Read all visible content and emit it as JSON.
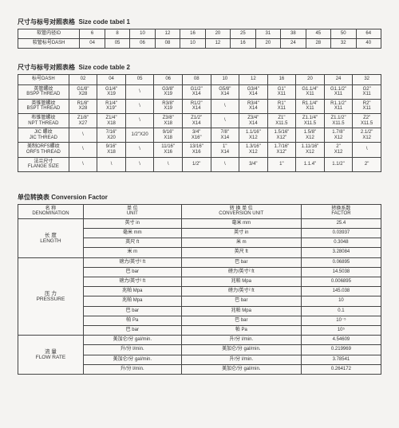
{
  "table1": {
    "title_cn": "尺寸与标号对照表格",
    "title_en": "Size code tabel  1",
    "rows": [
      {
        "h_cn": "软管内径ID",
        "h_en": "",
        "cells": [
          "6",
          "8",
          "10",
          "12",
          "16",
          "20",
          "25",
          "31",
          "38",
          "45",
          "50",
          "64"
        ]
      },
      {
        "h_cn": "软管标号DASH",
        "h_en": "",
        "cells": [
          "04",
          "05",
          "06",
          "08",
          "10",
          "12",
          "16",
          "20",
          "24",
          "28",
          "32",
          "40"
        ]
      }
    ]
  },
  "table2": {
    "title_cn": "尺寸与标号对照表格",
    "title_en": "Size code table  2",
    "header": {
      "h_cn": "标号DASH",
      "h_en": "",
      "cells": [
        "02",
        "04",
        "05",
        "06",
        "08",
        "10",
        "12",
        "16",
        "20",
        "24",
        "32"
      ]
    },
    "rows": [
      {
        "h_cn": "英管螺纹",
        "h_en": "BSPP THREAD",
        "cells": [
          [
            "G1/8\"",
            "X28"
          ],
          [
            "G1/4\"",
            "X19"
          ],
          [
            "\\",
            ""
          ],
          [
            "G3/8\"",
            "X19"
          ],
          [
            "G1/2\"",
            "X14"
          ],
          [
            "G5/8\"",
            "X14"
          ],
          [
            "G3/4\"",
            "X14"
          ],
          [
            "G1\"",
            "X11"
          ],
          [
            "G1.1/4\"",
            "X11"
          ],
          [
            "G1.1/2\"",
            "X11"
          ],
          [
            "G2\"",
            "X11"
          ]
        ]
      },
      {
        "h_cn": "英锥管螺纹",
        "h_en": "BSPT THREAD",
        "cells": [
          [
            "R1/8\"",
            "X28"
          ],
          [
            "R1/4\"",
            "X19\""
          ],
          [
            "\\",
            ""
          ],
          [
            "R3/8\"",
            "X19"
          ],
          [
            "R1/2\"",
            "X14"
          ],
          [
            "\\",
            ""
          ],
          [
            "R3/4\"",
            "X14"
          ],
          [
            "R1\"",
            "X11"
          ],
          [
            "R1.1/4\"",
            "X11"
          ],
          [
            "R1.1/2\"",
            "X11"
          ],
          [
            "R2\"",
            "X11"
          ]
        ]
      },
      {
        "h_cn": "布锥管螺纹",
        "h_en": "NPT THREAD",
        "cells": [
          [
            "Z1/8\"",
            "X27"
          ],
          [
            "Z1/4\"",
            "X18"
          ],
          [
            "\\",
            ""
          ],
          [
            "Z3/8\"",
            "X18"
          ],
          [
            "Z1/2\"",
            "X14"
          ],
          [
            "\\",
            ""
          ],
          [
            "Z3/4\"",
            "X14"
          ],
          [
            "Z1\"",
            "X11.5"
          ],
          [
            "Z1.1/4\"",
            "X11.5"
          ],
          [
            "Z1.1/2\"",
            "X11.5"
          ],
          [
            "Z2\"",
            "X11.5"
          ]
        ]
      },
      {
        "h_cn": "JIC 螺纹",
        "h_en": "JIC THREAD",
        "cells": [
          [
            "\\",
            ""
          ],
          [
            "7/16\"",
            "X20"
          ],
          [
            "1/2\"X20",
            ""
          ],
          [
            "9/16\"",
            "X18"
          ],
          [
            "3/4\"",
            "X16\""
          ],
          [
            "7/8\"",
            "X14"
          ],
          [
            "1.1/16\"",
            "X12"
          ],
          [
            "1.5/16\"",
            "X12\""
          ],
          [
            "1.5/8\"",
            "X12"
          ],
          [
            "1.7/8\"",
            "X12"
          ],
          [
            "2.1/2\"",
            "X12"
          ]
        ]
      },
      {
        "h_cn": "美制ORFS螺纹",
        "h_en": "ORFS THREAD",
        "cells": [
          [
            "\\",
            ""
          ],
          [
            "9/16\"",
            "X18"
          ],
          [
            "\\",
            ""
          ],
          [
            "11/16\"",
            "X16"
          ],
          [
            "13/16\"",
            "X16"
          ],
          [
            "1\"",
            "X14"
          ],
          [
            "1.3/16\"",
            "X12"
          ],
          [
            "1.7/16\"",
            "X12\""
          ],
          [
            "1.11/16\"",
            "X12"
          ],
          [
            "2\"",
            "X12"
          ],
          [
            "\\",
            ""
          ]
        ]
      },
      {
        "h_cn": "法兰尺寸",
        "h_en": "FLANGE SIZE",
        "cells": [
          [
            "\\",
            ""
          ],
          [
            "\\",
            ""
          ],
          [
            "\\",
            ""
          ],
          [
            "\\",
            ""
          ],
          [
            "1/2\"",
            ""
          ],
          [
            "\\",
            ""
          ],
          [
            "3/4\"",
            ""
          ],
          [
            "1\"",
            ""
          ],
          [
            "1.1.4\"",
            ""
          ],
          [
            "1.1/2\"",
            ""
          ],
          [
            "2\"",
            ""
          ]
        ]
      }
    ]
  },
  "conv": {
    "title_cn": "单位转换表",
    "title_en": "Conversion Factor",
    "header": {
      "c1_cn": "名 称",
      "c1_en": "DENOMINATION",
      "c2_cn": "单 位",
      "c2_en": "UNIT",
      "c3_cn": "转 换 单 位",
      "c3_en": "CONVERSION UNIT",
      "c4_cn": "转换系数",
      "c4_en": "FACTOR"
    },
    "groups": [
      {
        "name_cn": "长 度",
        "name_en": "LENGTH",
        "rows": [
          {
            "u": "英寸 in",
            "cu": "毫米 mm",
            "f": "25.4"
          },
          {
            "u": "毫米 mm",
            "cu": "英寸 in",
            "f": "0.03937"
          },
          {
            "u": "英尺 ft",
            "cu": "米 m",
            "f": "0.3048"
          },
          {
            "u": "米 m",
            "cu": "英尺 ft",
            "f": "3.28084"
          }
        ]
      },
      {
        "name_cn": "压 力",
        "name_en": "PRESSURE",
        "rows": [
          {
            "u": "磅力/英寸² ft",
            "cu": "巴 bar",
            "f": "0.06895"
          },
          {
            "u": "巴 bar",
            "cu": "磅力/英寸² ft",
            "f": "14.5038"
          },
          {
            "u": "磅力/英寸² ft",
            "cu": "兆帕 Mpa",
            "f": "0.006895"
          },
          {
            "u": "兆帕 Mpa",
            "cu": "磅力/英寸² ft",
            "f": "145.038"
          },
          {
            "u": "兆帕 Mpa",
            "cu": "巴 bar",
            "f": "10"
          },
          {
            "u": "巴 bar",
            "cu": "兆帕 Mpa",
            "f": "0.1"
          },
          {
            "u": "帕 Pa",
            "cu": "巴 bar",
            "f": "10⁻⁵"
          },
          {
            "u": "巴 bar",
            "cu": "帕 Pa",
            "f": "10⁵"
          }
        ]
      },
      {
        "name_cn": "流 量",
        "name_en": "FLOW RATE",
        "rows": [
          {
            "u": "美加仑/分 gal/min.",
            "cu": "升/分 l/min.",
            "f": "4.54609"
          },
          {
            "u": "升/分 l/min.",
            "cu": "美加仑/分 gal/min.",
            "f": "0.219969"
          },
          {
            "u": "美加仑/分 gal/min.",
            "cu": "升/分 l/min.",
            "f": "3.78541"
          },
          {
            "u": "升/分 l/min.",
            "cu": "美加仑/分 gal/min.",
            "f": "0.264172"
          }
        ]
      }
    ]
  }
}
